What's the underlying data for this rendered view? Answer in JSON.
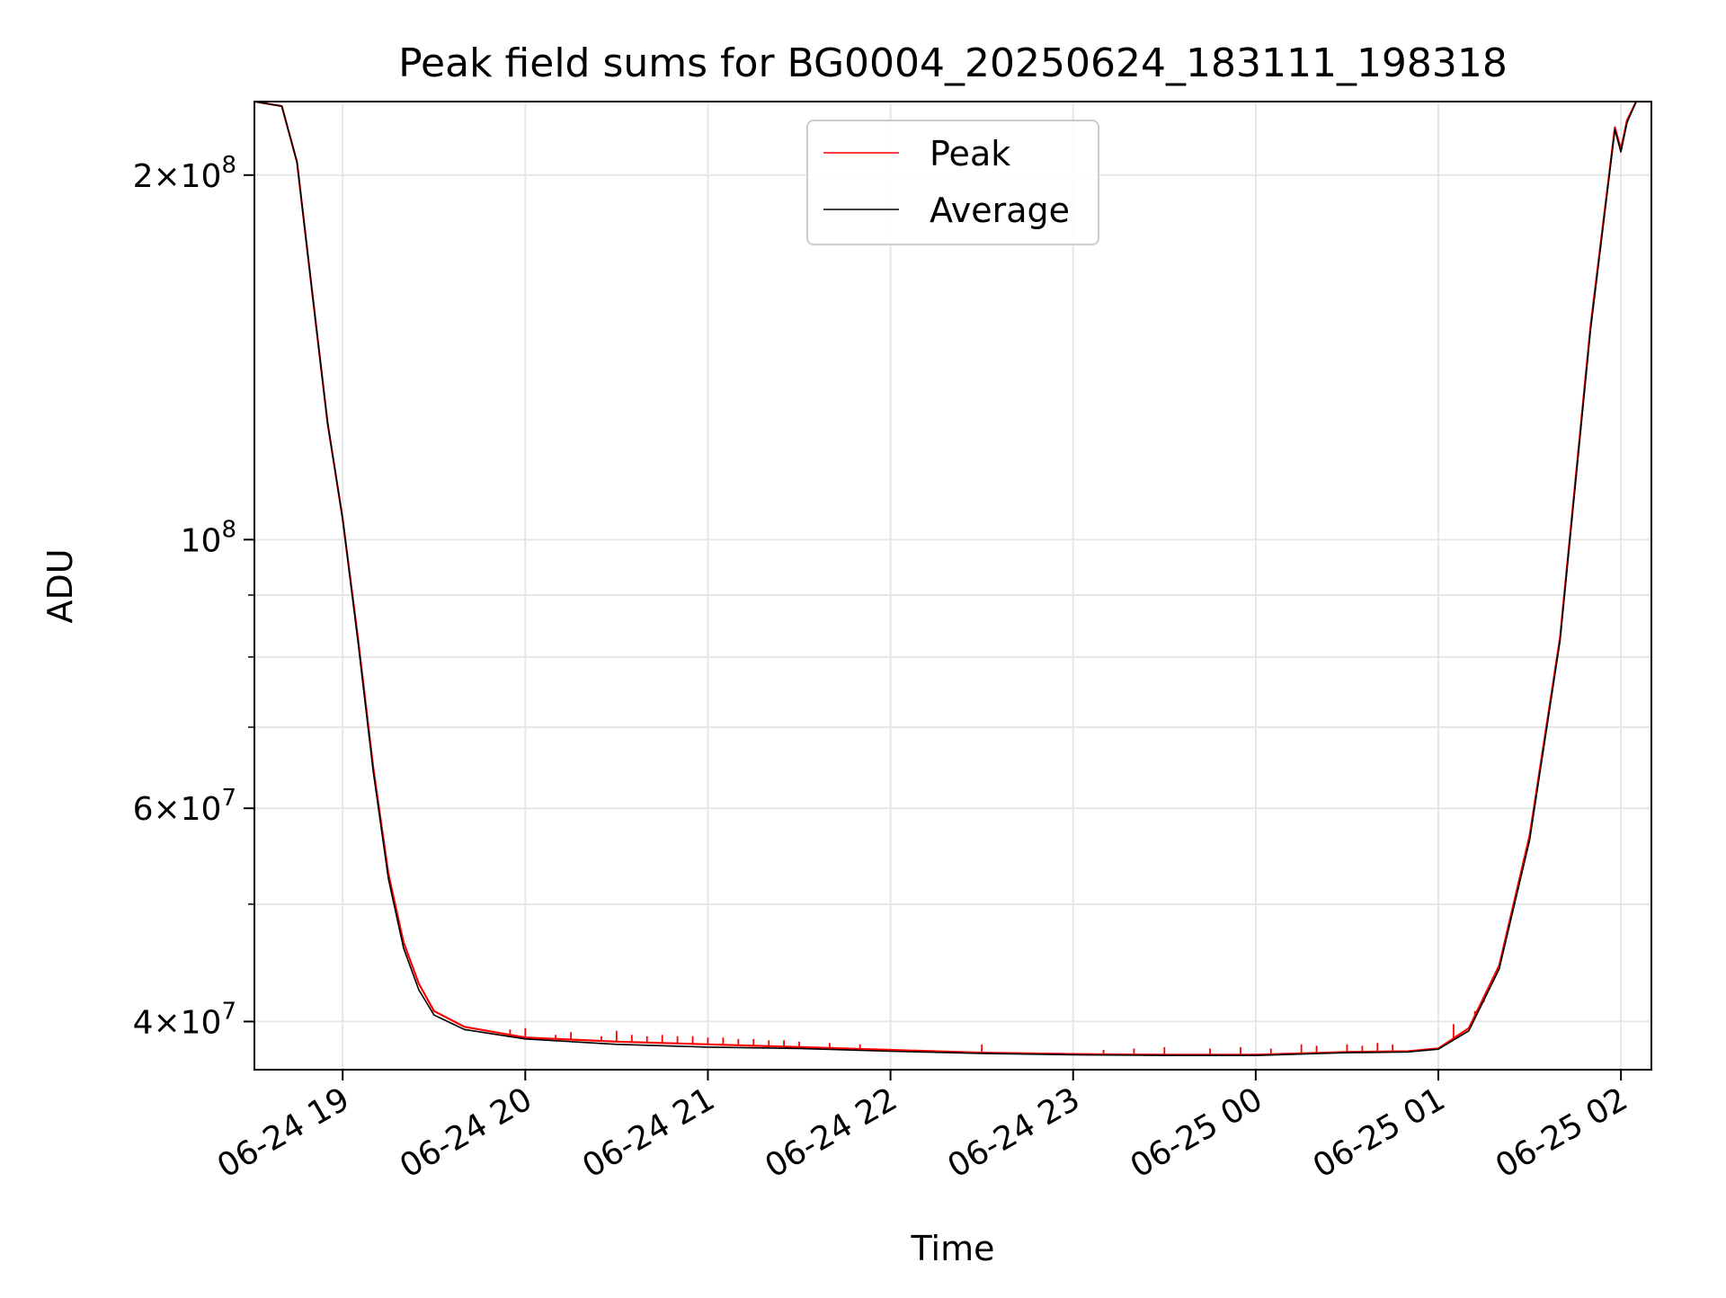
{
  "chart_data": {
    "type": "line",
    "title": "Peak field sums for BG0004_20250624_183111_198318",
    "xlabel": "Time",
    "ylabel": "ADU",
    "yscale": "log",
    "ylim": [
      36500000,
      230000000
    ],
    "xlim": [
      "2025-06-24 18:31",
      "2025-06-25 02:10"
    ],
    "grid": true,
    "legend_position": "top-center",
    "x_ticks": [
      {
        "value": "2025-06-24 19:00",
        "label": "06-24 19"
      },
      {
        "value": "2025-06-24 20:00",
        "label": "06-24 20"
      },
      {
        "value": "2025-06-24 21:00",
        "label": "06-24 21"
      },
      {
        "value": "2025-06-24 22:00",
        "label": "06-24 22"
      },
      {
        "value": "2025-06-24 23:00",
        "label": "06-24 23"
      },
      {
        "value": "2025-06-25 00:00",
        "label": "06-25 00"
      },
      {
        "value": "2025-06-25 01:00",
        "label": "06-25 01"
      },
      {
        "value": "2025-06-25 02:00",
        "label": "06-25 02"
      }
    ],
    "y_ticks": [
      {
        "value": 40000000,
        "base": "4",
        "exp": "7"
      },
      {
        "value": 60000000,
        "base": "6",
        "exp": "7"
      },
      {
        "value": 100000000,
        "base": "",
        "exp": "8"
      },
      {
        "value": 200000000,
        "base": "2",
        "exp": "8"
      }
    ],
    "y_minor_ticks": [
      50000000,
      70000000,
      80000000,
      90000000
    ],
    "series": [
      {
        "name": "Peak",
        "color": "#ff0000",
        "points": [
          [
            "2025-06-24 18:31",
            230000000
          ],
          [
            "2025-06-24 18:40",
            228000000
          ],
          [
            "2025-06-24 18:45",
            205000000
          ],
          [
            "2025-06-24 18:50",
            160000000
          ],
          [
            "2025-06-24 18:55",
            125000000
          ],
          [
            "2025-06-24 19:00",
            104000000
          ],
          [
            "2025-06-24 19:05",
            83000000
          ],
          [
            "2025-06-24 19:10",
            65000000
          ],
          [
            "2025-06-24 19:15",
            53000000
          ],
          [
            "2025-06-24 19:20",
            46500000
          ],
          [
            "2025-06-24 19:25",
            43000000
          ],
          [
            "2025-06-24 19:30",
            40800000
          ],
          [
            "2025-06-24 19:40",
            39600000
          ],
          [
            "2025-06-24 20:00",
            38800000
          ],
          [
            "2025-06-24 20:30",
            38500000
          ],
          [
            "2025-06-24 21:00",
            38300000
          ],
          [
            "2025-06-24 21:30",
            38100000
          ],
          [
            "2025-06-24 22:00",
            37900000
          ],
          [
            "2025-06-24 22:30",
            37700000
          ],
          [
            "2025-06-24 23:00",
            37600000
          ],
          [
            "2025-06-24 23:30",
            37550000
          ],
          [
            "2025-06-25 00:00",
            37550000
          ],
          [
            "2025-06-25 00:30",
            37750000
          ],
          [
            "2025-06-25 00:50",
            37800000
          ],
          [
            "2025-06-25 01:00",
            38000000
          ],
          [
            "2025-06-25 01:10",
            39500000
          ],
          [
            "2025-06-25 01:20",
            44500000
          ],
          [
            "2025-06-25 01:30",
            57000000
          ],
          [
            "2025-06-25 01:40",
            83000000
          ],
          [
            "2025-06-25 01:50",
            150000000
          ],
          [
            "2025-06-25 01:58",
            219000000
          ],
          [
            "2025-06-25 02:00",
            210000000
          ],
          [
            "2025-06-25 02:02",
            222000000
          ],
          [
            "2025-06-25 02:05",
            230000000
          ],
          [
            "2025-06-25 02:10",
            230000000
          ]
        ],
        "spikes": [
          [
            "2025-06-24 19:55",
            39400000
          ],
          [
            "2025-06-24 20:00",
            39500000
          ],
          [
            "2025-06-24 20:10",
            39000000
          ],
          [
            "2025-06-24 20:15",
            39200000
          ],
          [
            "2025-06-24 20:25",
            38900000
          ],
          [
            "2025-06-24 20:30",
            39300000
          ],
          [
            "2025-06-24 20:35",
            39000000
          ],
          [
            "2025-06-24 20:40",
            38900000
          ],
          [
            "2025-06-24 20:45",
            39000000
          ],
          [
            "2025-06-24 20:50",
            38900000
          ],
          [
            "2025-06-24 20:55",
            38900000
          ],
          [
            "2025-06-24 21:00",
            38800000
          ],
          [
            "2025-06-24 21:05",
            38800000
          ],
          [
            "2025-06-24 21:10",
            38700000
          ],
          [
            "2025-06-24 21:15",
            38700000
          ],
          [
            "2025-06-24 21:20",
            38600000
          ],
          [
            "2025-06-24 21:25",
            38600000
          ],
          [
            "2025-06-24 21:30",
            38500000
          ],
          [
            "2025-06-24 21:40",
            38400000
          ],
          [
            "2025-06-24 21:50",
            38300000
          ],
          [
            "2025-06-24 22:30",
            38300000
          ],
          [
            "2025-06-24 23:10",
            37900000
          ],
          [
            "2025-06-24 23:20",
            38000000
          ],
          [
            "2025-06-24 23:30",
            38100000
          ],
          [
            "2025-06-24 23:45",
            38000000
          ],
          [
            "2025-06-24 23:55",
            38100000
          ],
          [
            "2025-06-25 00:05",
            38000000
          ],
          [
            "2025-06-25 00:15",
            38300000
          ],
          [
            "2025-06-25 00:20",
            38200000
          ],
          [
            "2025-06-25 00:30",
            38300000
          ],
          [
            "2025-06-25 00:35",
            38200000
          ],
          [
            "2025-06-25 00:40",
            38400000
          ],
          [
            "2025-06-25 00:45",
            38300000
          ],
          [
            "2025-06-25 01:05",
            39800000
          ],
          [
            "2025-06-25 01:12",
            40800000
          ],
          [
            "2025-06-25 01:15",
            41500000
          ]
        ]
      },
      {
        "name": "Average",
        "color": "#000000",
        "points": [
          [
            "2025-06-24 18:31",
            230000000
          ],
          [
            "2025-06-24 18:40",
            228000000
          ],
          [
            "2025-06-24 18:45",
            205000000
          ],
          [
            "2025-06-24 18:50",
            160000000
          ],
          [
            "2025-06-24 18:55",
            125000000
          ],
          [
            "2025-06-24 19:00",
            104000000
          ],
          [
            "2025-06-24 19:05",
            82500000
          ],
          [
            "2025-06-24 19:10",
            64500000
          ],
          [
            "2025-06-24 19:15",
            52500000
          ],
          [
            "2025-06-24 19:20",
            46000000
          ],
          [
            "2025-06-24 19:25",
            42500000
          ],
          [
            "2025-06-24 19:30",
            40500000
          ],
          [
            "2025-06-24 19:40",
            39400000
          ],
          [
            "2025-06-24 20:00",
            38700000
          ],
          [
            "2025-06-24 20:30",
            38300000
          ],
          [
            "2025-06-24 21:00",
            38100000
          ],
          [
            "2025-06-24 21:30",
            38000000
          ],
          [
            "2025-06-24 22:00",
            37800000
          ],
          [
            "2025-06-24 22:30",
            37650000
          ],
          [
            "2025-06-24 23:00",
            37550000
          ],
          [
            "2025-06-24 23:30",
            37500000
          ],
          [
            "2025-06-25 00:00",
            37500000
          ],
          [
            "2025-06-25 00:30",
            37700000
          ],
          [
            "2025-06-25 00:50",
            37750000
          ],
          [
            "2025-06-25 01:00",
            37950000
          ],
          [
            "2025-06-25 01:10",
            39300000
          ],
          [
            "2025-06-25 01:20",
            44200000
          ],
          [
            "2025-06-25 01:30",
            56500000
          ],
          [
            "2025-06-25 01:40",
            82500000
          ],
          [
            "2025-06-25 01:50",
            149000000
          ],
          [
            "2025-06-25 01:58",
            218000000
          ],
          [
            "2025-06-25 02:00",
            209000000
          ],
          [
            "2025-06-25 02:02",
            221000000
          ],
          [
            "2025-06-25 02:05",
            230000000
          ],
          [
            "2025-06-25 02:10",
            230000000
          ]
        ]
      }
    ]
  }
}
